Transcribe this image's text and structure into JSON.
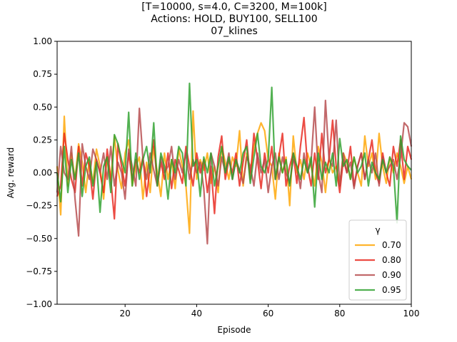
{
  "chart_data": {
    "type": "line",
    "title_lines": [
      "[T=10000, s=4.0, C=3200, M=100k]",
      "Actions: HOLD, BUY100, SELL100",
      "07_klines"
    ],
    "xlabel": "Episode",
    "ylabel": "Avg. reward",
    "xlim": [
      1,
      100
    ],
    "ylim": [
      -1.0,
      1.0
    ],
    "xticks": [
      20,
      40,
      60,
      80,
      100
    ],
    "xtick_labels": [
      "20",
      "40",
      "60",
      "80",
      "100"
    ],
    "yticks": [
      -1.0,
      -0.75,
      -0.5,
      -0.25,
      0.0,
      0.25,
      0.5,
      0.75,
      1.0
    ],
    "ytick_labels": [
      "−1.00",
      "−0.75",
      "−0.50",
      "−0.25",
      "0.00",
      "0.25",
      "0.50",
      "0.75",
      "1.00"
    ],
    "grid": false,
    "legend": {
      "title": "γ",
      "placement": "bottom-right"
    },
    "x": [
      1,
      2,
      3,
      4,
      5,
      6,
      7,
      8,
      9,
      10,
      11,
      12,
      13,
      14,
      15,
      16,
      17,
      18,
      19,
      20,
      21,
      22,
      23,
      24,
      25,
      26,
      27,
      28,
      29,
      30,
      31,
      32,
      33,
      34,
      35,
      36,
      37,
      38,
      39,
      40,
      41,
      42,
      43,
      44,
      45,
      46,
      47,
      48,
      49,
      50,
      51,
      52,
      53,
      54,
      55,
      56,
      57,
      58,
      59,
      60,
      61,
      62,
      63,
      64,
      65,
      66,
      67,
      68,
      69,
      70,
      71,
      72,
      73,
      74,
      75,
      76,
      77,
      78,
      79,
      80,
      81,
      82,
      83,
      84,
      85,
      86,
      87,
      88,
      89,
      90,
      91,
      92,
      93,
      94,
      95,
      96,
      97,
      98,
      99,
      100
    ],
    "series": [
      {
        "name": "0.70",
        "color": "#ffa500",
        "values": [
          0.05,
          -0.32,
          0.43,
          -0.1,
          0.15,
          -0.05,
          0.22,
          0.08,
          -0.15,
          0.1,
          -0.08,
          0.18,
          0.05,
          -0.2,
          0.12,
          -0.05,
          0.28,
          0.02,
          -0.12,
          0.15,
          0.25,
          -0.1,
          0.05,
          0.12,
          -0.2,
          0.08,
          -0.15,
          0.2,
          0.0,
          -0.18,
          0.15,
          -0.05,
          0.1,
          -0.12,
          0.18,
          0.05,
          -0.1,
          -0.46,
          0.47,
          -0.05,
          0.1,
          0.02,
          0.15,
          -0.08,
          0.05,
          -0.15,
          0.2,
          0.08,
          -0.05,
          0.12,
          0.05,
          0.32,
          -0.1,
          0.15,
          0.0,
          0.2,
          0.3,
          0.38,
          0.32,
          0.1,
          0.05,
          -0.2,
          0.15,
          0.0,
          0.12,
          -0.25,
          0.28,
          0.0,
          0.1,
          -0.05,
          0.15,
          0.05,
          -0.1,
          0.2,
          0.08,
          -0.15,
          0.12,
          0.0,
          0.05,
          -0.1,
          0.15,
          0.08,
          -0.05,
          0.12,
          0.0,
          -0.1,
          0.28,
          0.05,
          0.15,
          -0.05,
          0.3,
          0.05,
          -0.08,
          0.12,
          0.0,
          0.15,
          0.05,
          -0.08,
          0.05,
          -0.05
        ]
      },
      {
        "name": "0.80",
        "color": "#e8251b",
        "values": [
          -0.18,
          -0.1,
          0.3,
          0.1,
          -0.05,
          -0.15,
          0.2,
          -0.1,
          0.15,
          0.05,
          -0.2,
          0.1,
          0.0,
          -0.15,
          0.18,
          -0.05,
          -0.35,
          0.22,
          0.05,
          -0.1,
          0.15,
          -0.05,
          0.1,
          0.0,
          0.12,
          -0.18,
          0.05,
          0.25,
          -0.1,
          0.08,
          -0.05,
          0.15,
          -0.12,
          0.1,
          0.02,
          -0.08,
          0.2,
          0.05,
          -0.1,
          0.15,
          0.0,
          0.1,
          -0.15,
          0.05,
          -0.31,
          0.12,
          0.28,
          -0.05,
          0.1,
          0.0,
          0.15,
          -0.1,
          0.08,
          0.25,
          -0.05,
          0.3,
          0.1,
          -0.12,
          0.15,
          0.0,
          0.2,
          -0.05,
          0.12,
          0.3,
          -0.1,
          0.05,
          0.15,
          -0.08,
          0.2,
          0.42,
          0.05,
          -0.1,
          0.15,
          -0.05,
          0.3,
          0.0,
          0.1,
          0.4,
          0.05,
          -0.15,
          0.1,
          0.0,
          0.2,
          -0.1,
          0.05,
          0.15,
          -0.05,
          0.1,
          0.25,
          0.0,
          -0.08,
          0.15,
          0.0,
          -0.1,
          0.2,
          0.05,
          0.25,
          -0.05,
          0.2,
          0.1
        ]
      },
      {
        "name": "0.90",
        "color": "#b5484b",
        "values": [
          -0.15,
          0.2,
          0.0,
          -0.05,
          0.2,
          -0.2,
          -0.48,
          0.22,
          0.05,
          -0.05,
          0.18,
          0.1,
          0.0,
          0.15,
          -0.05,
          0.2,
          -0.1,
          0.08,
          0.0,
          -0.2,
          0.18,
          0.05,
          -0.1,
          0.49,
          0.1,
          -0.05,
          0.15,
          0.02,
          -0.1,
          0.12,
          0.0,
          0.05,
          0.2,
          -0.05,
          0.1,
          0.0,
          0.15,
          -0.05,
          0.1,
          0.0,
          0.08,
          -0.12,
          -0.54,
          0.15,
          0.05,
          -0.1,
          0.12,
          0.0,
          0.15,
          -0.05,
          0.1,
          0.02,
          -0.08,
          0.12,
          0.05,
          -0.1,
          0.15,
          0.0,
          0.1,
          -0.15,
          0.05,
          0.15,
          -0.05,
          0.12,
          0.0,
          -0.08,
          0.1,
          0.05,
          -0.12,
          0.15,
          0.0,
          0.08,
          0.5,
          0.0,
          -0.15,
          0.55,
          0.1,
          0.05,
          0.4,
          -0.1,
          0.15,
          0.0,
          0.08,
          -0.12,
          0.05,
          0.15,
          -0.05,
          0.1,
          0.0,
          0.15,
          -0.1,
          0.12,
          0.0,
          0.05,
          0.1,
          -0.05,
          0.12,
          0.38,
          0.35,
          0.2
        ]
      },
      {
        "name": "0.95",
        "color": "#2ca02c",
        "values": [
          0.0,
          -0.22,
          0.2,
          -0.15,
          0.1,
          -0.05,
          0.15,
          -0.18,
          0.05,
          0.12,
          -0.1,
          0.08,
          -0.3,
          0.05,
          0.12,
          -0.15,
          0.29,
          0.22,
          0.1,
          0.0,
          0.46,
          -0.1,
          0.15,
          -0.05,
          0.1,
          0.2,
          0.0,
          0.38,
          -0.1,
          0.15,
          0.05,
          -0.2,
          0.1,
          0.0,
          0.2,
          0.15,
          -0.1,
          0.68,
          0.05,
          0.1,
          -0.18,
          0.12,
          0.0,
          0.15,
          -0.1,
          0.05,
          0.2,
          0.0,
          0.12,
          -0.05,
          0.1,
          0.0,
          0.15,
          0.2,
          -0.08,
          0.12,
          0.3,
          0.05,
          0.0,
          0.1,
          0.65,
          -0.05,
          0.12,
          0.0,
          0.1,
          -0.1,
          0.15,
          0.05,
          -0.05,
          0.1,
          0.0,
          0.12,
          -0.26,
          0.15,
          -0.05,
          0.08,
          0.0,
          0.15,
          -0.1,
          0.26,
          0.05,
          0.1,
          -0.05,
          0.12,
          0.0,
          0.05,
          0.15,
          -0.1,
          0.08,
          0.0,
          -0.05,
          0.1,
          0.0,
          0.12,
          0.05,
          -0.38,
          0.28,
          0.1,
          0.05,
          0.02
        ]
      }
    ]
  }
}
